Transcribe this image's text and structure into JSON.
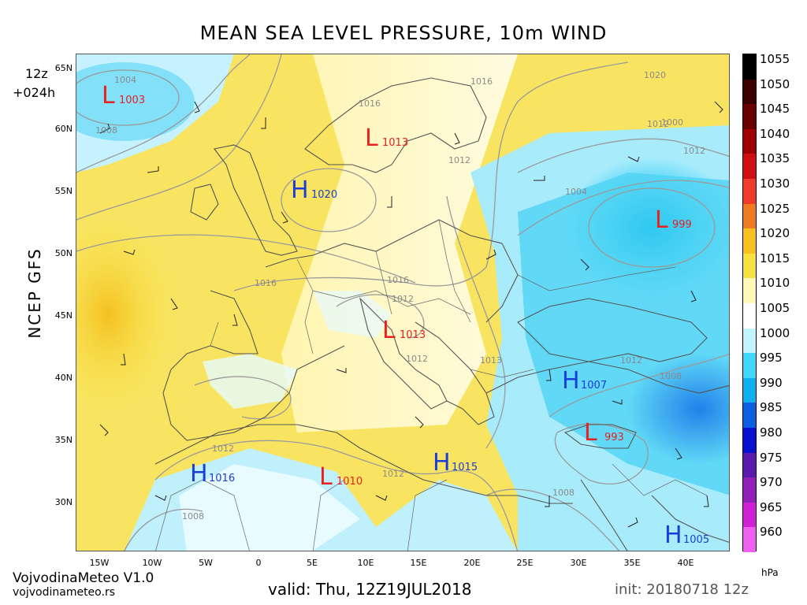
{
  "title": "MEAN SEA LEVEL PRESSURE, 10m WIND",
  "run_hour": "12z",
  "lead_time": "+024h",
  "model": "NCEP GFS",
  "valid": "valid: Thu, 12Z19JUL2018",
  "init": "init: 20180718 12z",
  "brand": "VojvodinaMeteo V1.0",
  "brand_url": "vojvodinameteo.rs",
  "unit": "hPa",
  "lat_labels": [
    "65N",
    "60N",
    "55N",
    "50N",
    "45N",
    "40N",
    "35N",
    "30N"
  ],
  "lon_labels": [
    "15W",
    "10W",
    "5W",
    "0",
    "5E",
    "10E",
    "15E",
    "20E",
    "25E",
    "30E",
    "35E",
    "40E"
  ],
  "colorbar": {
    "levels": [
      "1055",
      "1050",
      "1045",
      "1040",
      "1035",
      "1030",
      "1025",
      "1020",
      "1015",
      "1010",
      "1005",
      "1000",
      "995",
      "990",
      "985",
      "980",
      "975",
      "970",
      "965",
      "960"
    ],
    "colors": [
      "#000000",
      "#3a0000",
      "#6a0000",
      "#a00000",
      "#d01010",
      "#f03a2a",
      "#f07a20",
      "#f8c020",
      "#f8e040",
      "#fff8b8",
      "#ffffff",
      "#c0f4ff",
      "#40d8f8",
      "#10b0f0",
      "#0a60e0",
      "#0a10d0",
      "#5a1ab0",
      "#9020b8",
      "#d020d8",
      "#f060f0"
    ]
  },
  "pressure_centers": [
    {
      "type": "L",
      "value": "1003"
    },
    {
      "type": "L",
      "value": "1013"
    },
    {
      "type": "H",
      "value": "1020"
    },
    {
      "type": "L",
      "value": "999"
    },
    {
      "type": "L",
      "value": "1013"
    },
    {
      "type": "H",
      "value": "1007"
    },
    {
      "type": "L",
      "value": "993"
    },
    {
      "type": "H",
      "value": "1016"
    },
    {
      "type": "L",
      "value": "1010"
    },
    {
      "type": "H",
      "value": "1015"
    },
    {
      "type": "H",
      "value": "1005"
    }
  ],
  "isobar_labels": [
    "1004",
    "1008",
    "1016",
    "1016",
    "1012",
    "1020",
    "1012",
    "1004",
    "1016",
    "1016",
    "1012",
    "1012",
    "1013",
    "1012",
    "1008",
    "1000",
    "1012",
    "1012",
    "1008",
    "1008",
    "1012"
  ],
  "colors": {
    "high": "#1a3cd8",
    "low": "#e82020",
    "isobar": "#9a9a9a"
  }
}
